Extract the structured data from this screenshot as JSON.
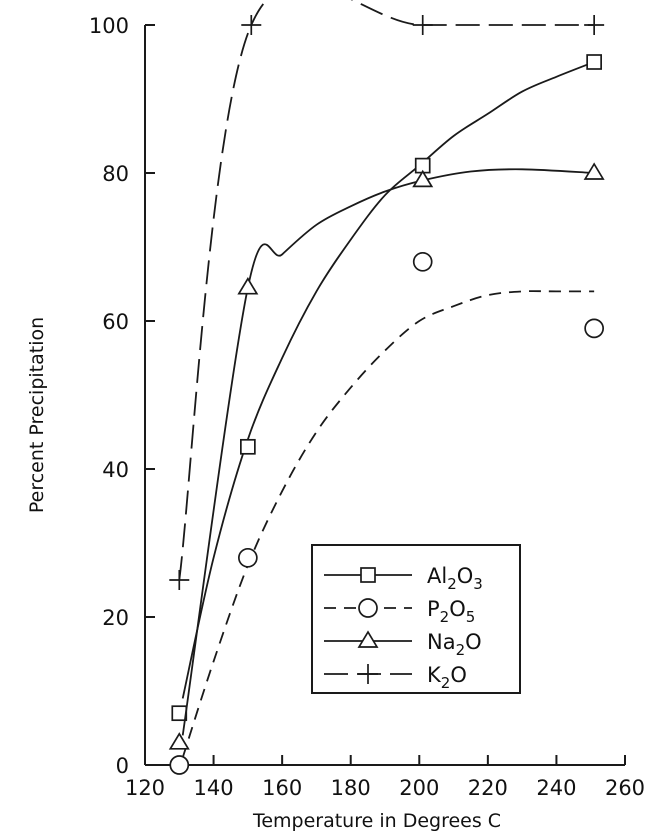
{
  "chart_data": {
    "type": "line",
    "xlabel": "Temperature in Degrees C",
    "ylabel": "Percent Precipitation",
    "xlim": [
      120,
      260
    ],
    "ylim": [
      0,
      100
    ],
    "x_ticks": [
      "120",
      "140",
      "160",
      "180",
      "200",
      "220",
      "240",
      "260"
    ],
    "y_ticks": [
      "0",
      "20",
      "40",
      "60",
      "80",
      "100"
    ],
    "grid": false,
    "legend_position": "bottom-right",
    "series": [
      {
        "name": "Al2O3",
        "legend_parts": [
          "Al",
          "2",
          "O",
          "3"
        ],
        "marker": "square",
        "line": "solid",
        "points": [
          [
            130,
            7
          ],
          [
            150,
            43
          ],
          [
            201,
            81
          ],
          [
            251,
            95
          ]
        ],
        "curve": [
          [
            131,
            9
          ],
          [
            140,
            28
          ],
          [
            150,
            44
          ],
          [
            160,
            55
          ],
          [
            170,
            64
          ],
          [
            180,
            71
          ],
          [
            190,
            77
          ],
          [
            200,
            81
          ],
          [
            210,
            85
          ],
          [
            220,
            88
          ],
          [
            230,
            91
          ],
          [
            240,
            93
          ],
          [
            251,
            95
          ]
        ]
      },
      {
        "name": "P2O5",
        "legend_parts": [
          "P",
          "2",
          "O",
          "5"
        ],
        "marker": "circle",
        "line": "dashed",
        "points": [
          [
            130,
            0
          ],
          [
            150,
            28
          ],
          [
            201,
            68
          ],
          [
            251,
            59
          ]
        ],
        "curve": [
          [
            131,
            1
          ],
          [
            140,
            14
          ],
          [
            150,
            27
          ],
          [
            160,
            37
          ],
          [
            170,
            45
          ],
          [
            180,
            51
          ],
          [
            190,
            56
          ],
          [
            200,
            60
          ],
          [
            210,
            62
          ],
          [
            220,
            63.5
          ],
          [
            230,
            64
          ],
          [
            240,
            64
          ],
          [
            251,
            64
          ]
        ]
      },
      {
        "name": "Na2O",
        "legend_parts": [
          "Na",
          "2",
          "O",
          ""
        ],
        "marker": "triangle",
        "line": "solid",
        "points": [
          [
            130,
            3
          ],
          [
            150,
            64.5
          ],
          [
            201,
            79
          ],
          [
            251,
            80
          ]
        ],
        "curve": [
          [
            131,
            4
          ],
          [
            150,
            64.5
          ],
          [
            160,
            69
          ],
          [
            170,
            73
          ],
          [
            180,
            75.5
          ],
          [
            190,
            77.5
          ],
          [
            201,
            79
          ],
          [
            215,
            80.2
          ],
          [
            230,
            80.5
          ],
          [
            251,
            80
          ]
        ]
      },
      {
        "name": "K2O",
        "legend_parts": [
          "K",
          "2",
          "O",
          ""
        ],
        "marker": "plus",
        "line": "longdash",
        "points": [
          [
            130,
            25
          ],
          [
            151,
            100
          ],
          [
            201,
            100
          ],
          [
            251,
            100
          ]
        ],
        "curve": [
          [
            130,
            25
          ],
          [
            151,
            100
          ],
          [
            201,
            100
          ],
          [
            251,
            100
          ]
        ]
      }
    ]
  }
}
